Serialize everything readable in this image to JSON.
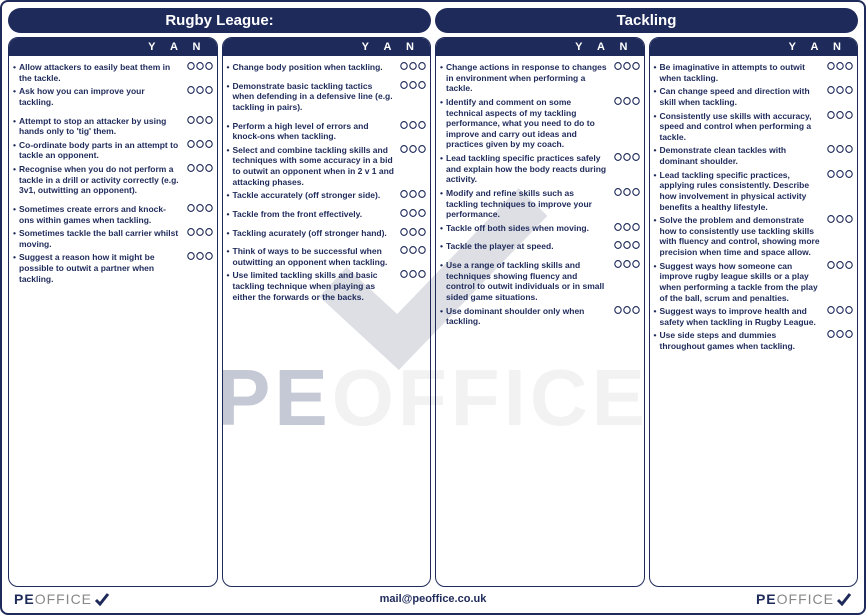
{
  "colors": {
    "primary": "#1e2a5a",
    "watermark_text": "#cccccc",
    "background": "#ffffff",
    "logo_secondary": "#888888"
  },
  "header_left": "Rugby League:",
  "header_right": "Tackling",
  "yan_label": "Y A N",
  "footer_email": "mail@peoffice.co.uk",
  "logo_pe": "PE",
  "logo_office": "OFFICE",
  "wm_pe": "PE",
  "wm_office": "OFFICE",
  "columns": [
    {
      "items": [
        {
          "text": "Allow attackers to easily beat them in the tackle.",
          "ovals": true
        },
        {
          "text": "Ask how you can improve your tackling.",
          "ovals": true,
          "gapAfter": true
        },
        {
          "text": "Attempt to stop an attacker by using hands only to 'tig' them.",
          "ovals": true
        },
        {
          "text": "Co-ordinate body parts in an attempt to tackle an opponent.",
          "ovals": true
        },
        {
          "text": "Recognise when you do not perform a tackle in a drill or activity correctly (e.g. 3v1, outwitting an opponent).",
          "ovals": true,
          "gapAfter": true
        },
        {
          "text": "Sometimes create errors and knock-ons within games when tackling.",
          "ovals": true
        },
        {
          "text": "Sometimes tackle the ball carrier whilst moving.",
          "ovals": true
        },
        {
          "text": "Suggest a reason how it might be possible to outwit a partner when tackling.",
          "ovals": true
        }
      ]
    },
    {
      "items": [
        {
          "text": "Change body position when tackling.",
          "ovals": true,
          "gapAfter": true
        },
        {
          "text": "Demonstrate basic tackling tactics when defending in a defensive line (e.g. tackling in pairs).",
          "ovals": true,
          "gapAfter": true
        },
        {
          "text": "Perform a high level of errors and knock-ons when tackling.",
          "ovals": true
        },
        {
          "text": "Select and combine tackling skills and techniques with some accuracy in a bid to outwit an opponent when in 2 v 1 and attacking phases.",
          "ovals": true
        },
        {
          "text": "Tackle accurately (off stronger side).",
          "ovals": true,
          "gapAfter": true
        },
        {
          "text": "Tackle from the front effectively.",
          "ovals": true,
          "gapAfter": true
        },
        {
          "text": "Tackling acurately (off stronger hand).",
          "ovals": true,
          "gapAfter": true
        },
        {
          "text": "Think of ways to be successful when outwitting an opponent when tackling.",
          "ovals": true
        },
        {
          "text": "Use limited tackling skills and basic tackling technique when playing as either the forwards or the backs.",
          "ovals": true
        }
      ]
    },
    {
      "items": [
        {
          "text": "Change actions in response to changes in environment when performing a tackle.",
          "ovals": true
        },
        {
          "text": "Identify and comment on some technical aspects of my tackling performance, what you need to do to improve and carry out ideas and practices given by my coach.",
          "ovals": true
        },
        {
          "text": "Lead tackling specific practices safely and explain how the body reacts during activity.",
          "ovals": true
        },
        {
          "text": "Modify and refine skills such as tackling techniques to improve your performance.",
          "ovals": true
        },
        {
          "text": "Tackle off both sides when moving.",
          "ovals": true,
          "gapAfter": true
        },
        {
          "text": "Tackle the player at speed.",
          "ovals": true,
          "gapAfter": true
        },
        {
          "text": "Use a range of tackling skills and techniques showing fluency and control to outwit individuals or in small sided game situations.",
          "ovals": true
        },
        {
          "text": "Use dominant shoulder only when tackling.",
          "ovals": true
        }
      ]
    },
    {
      "items": [
        {
          "text": "Be imaginative in attempts to outwit when tackling.",
          "ovals": true
        },
        {
          "text": "Can change speed and direction with skill when tackling.",
          "ovals": true
        },
        {
          "text": "Consistently use skills with accuracy, speed and control when performing a tackle.",
          "ovals": true
        },
        {
          "text": "Demonstrate clean tackles with dominant shoulder.",
          "ovals": true
        },
        {
          "text": "Lead tackling specific practices, applying rules consistently. Describe how involvement in physical activity benefits a healthy lifestyle.",
          "ovals": true
        },
        {
          "text": "Solve the problem and demonstrate how to consistently use tackling skills with fluency and control, showing more precision when time and space allow.",
          "ovals": true
        },
        {
          "text": "Suggest ways how someone can improve rugby league skills or a play when performing a tackle from the play of the ball, scrum and penalties.",
          "ovals": true
        },
        {
          "text": "Suggest ways to improve health and safety when tackling in Rugby League.",
          "ovals": true
        },
        {
          "text": "Use side steps and dummies throughout games when tackling.",
          "ovals": true
        }
      ]
    }
  ]
}
